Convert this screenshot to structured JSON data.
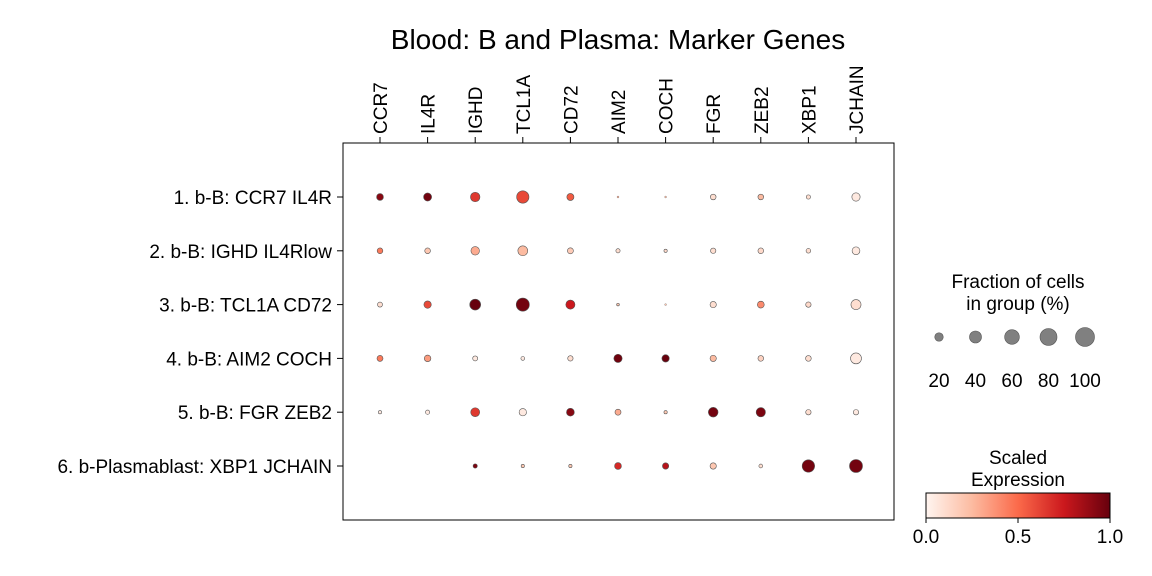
{
  "chart_data": {
    "type": "dotplot",
    "title": "Blood: B and Plasma: Marker Genes",
    "genes": [
      "CCR7",
      "IL4R",
      "IGHD",
      "TCL1A",
      "CD72",
      "AIM2",
      "COCH",
      "FGR",
      "ZEB2",
      "XBP1",
      "JCHAIN"
    ],
    "groups": [
      "1. b-B: CCR7 IL4R",
      "2. b-B: IGHD IL4Rlow",
      "3. b-B: TCL1A CD72",
      "4. b-B: AIM2 COCH",
      "5. b-B: FGR ZEB2",
      "6. b-Plasmablast: XBP1 JCHAIN"
    ],
    "fraction_pct": [
      [
        13,
        18,
        25,
        42,
        14,
        1,
        1,
        9,
        9,
        5,
        19
      ],
      [
        9,
        9,
        20,
        27,
        10,
        5,
        3,
        8,
        9,
        6,
        17
      ],
      [
        7,
        15,
        33,
        48,
        23,
        2,
        1,
        11,
        13,
        8,
        28
      ],
      [
        10,
        12,
        7,
        4,
        8,
        19,
        15,
        11,
        9,
        9,
        33
      ],
      [
        3,
        5,
        22,
        15,
        17,
        10,
        3,
        26,
        24,
        8,
        8
      ],
      [
        0,
        0,
        5,
        3,
        3,
        13,
        11,
        11,
        4,
        43,
        47
      ]
    ],
    "scaled_expression": [
      [
        0.92,
        0.97,
        0.65,
        0.6,
        0.55,
        0.3,
        0.25,
        0.1,
        0.25,
        0.1,
        0.05
      ],
      [
        0.45,
        0.2,
        0.3,
        0.25,
        0.18,
        0.1,
        0.12,
        0.1,
        0.12,
        0.1,
        0.05
      ],
      [
        0.1,
        0.6,
        1.0,
        0.97,
        0.75,
        0.2,
        0.2,
        0.1,
        0.4,
        0.12,
        0.1
      ],
      [
        0.45,
        0.35,
        0.05,
        0.05,
        0.1,
        0.98,
        1.0,
        0.25,
        0.15,
        0.1,
        0.05
      ],
      [
        0.05,
        0.05,
        0.65,
        0.05,
        0.92,
        0.3,
        0.2,
        0.97,
        0.95,
        0.1,
        0.05
      ],
      [
        0.0,
        0.0,
        0.95,
        0.2,
        0.2,
        0.7,
        0.8,
        0.2,
        0.1,
        0.97,
        0.97
      ]
    ],
    "size_legend": {
      "title_line1": "Fraction of cells",
      "title_line2": "in group (%)",
      "values": [
        20,
        40,
        60,
        80,
        100
      ],
      "labels": [
        "20",
        "40",
        "60",
        "80",
        "100"
      ]
    },
    "color_legend": {
      "title_line1": "Scaled",
      "title_line2": "Expression",
      "ticks": [
        0.0,
        0.5,
        1.0
      ],
      "tick_labels": [
        "0.0",
        "0.5",
        "1.0"
      ],
      "colormap": "Reds",
      "stops": [
        "#fff5f0",
        "#fcbba1",
        "#fb6a4a",
        "#cb181d",
        "#67000d"
      ]
    }
  }
}
